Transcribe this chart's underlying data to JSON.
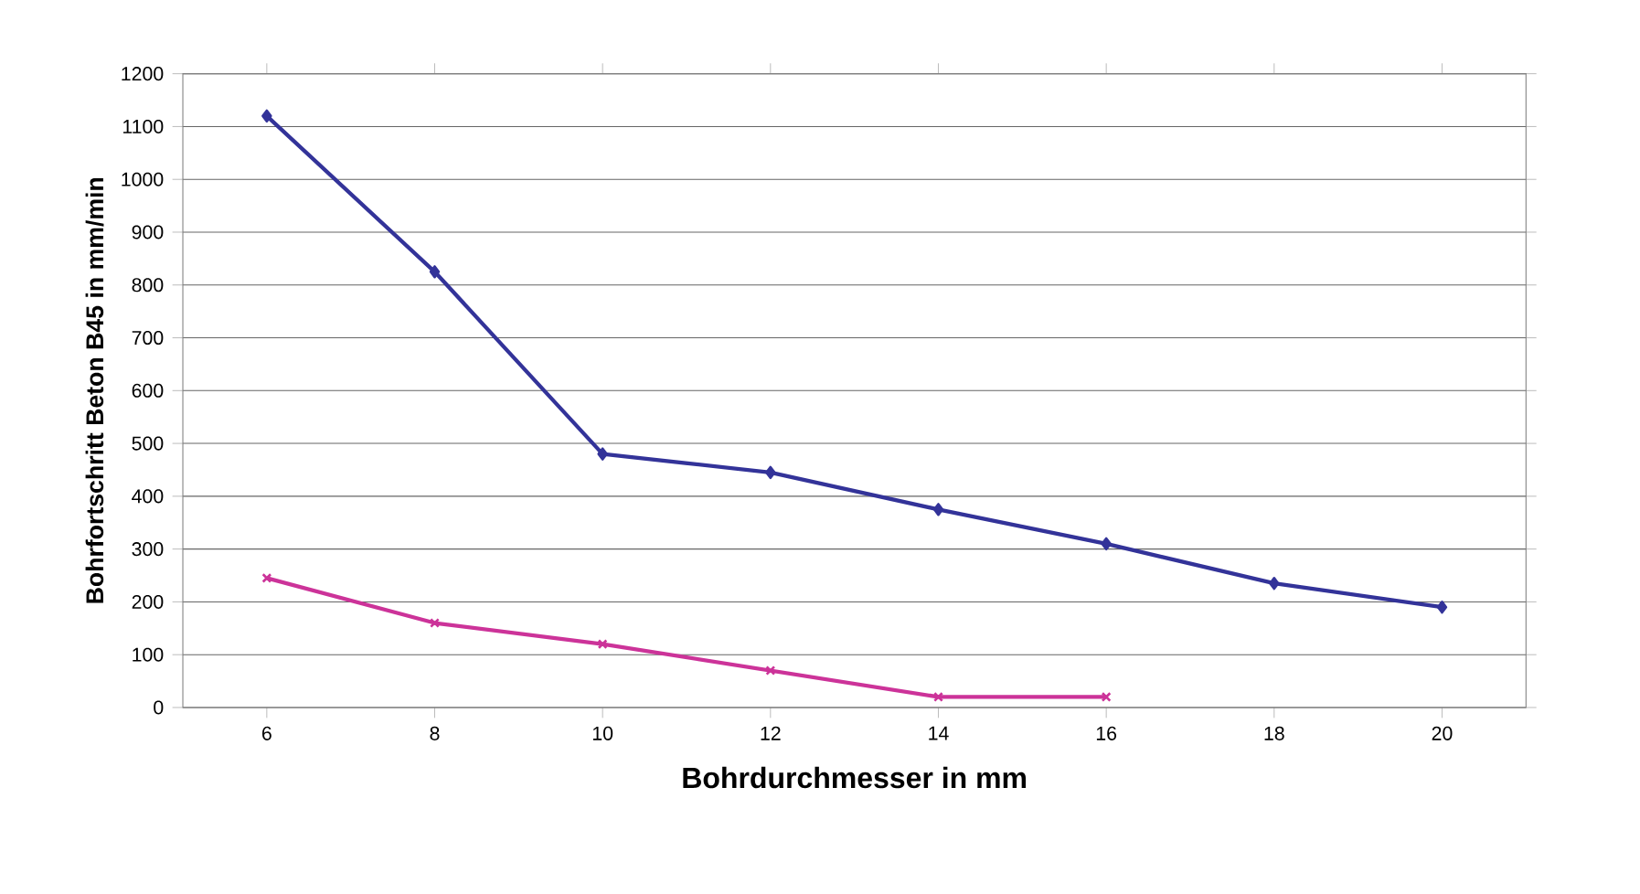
{
  "chart_data": {
    "type": "line",
    "xlabel": "Bohrdurchmesser in mm",
    "ylabel": "Bohrfortschritt Beton B45 in mm/min",
    "categories": [
      "6",
      "8",
      "10",
      "12",
      "14",
      "16",
      "18",
      "20"
    ],
    "series": [
      {
        "color": "#333399",
        "marker": "diamond",
        "values": [
          1120,
          825,
          480,
          445,
          375,
          310,
          235,
          190
        ]
      },
      {
        "color": "#cc3399",
        "marker": "cross",
        "values": [
          245,
          160,
          120,
          70,
          20,
          20,
          null,
          null
        ]
      }
    ],
    "ylim": [
      0,
      1200
    ],
    "yticks": [
      0,
      100,
      200,
      300,
      400,
      500,
      600,
      700,
      800,
      900,
      1000,
      1100,
      1200
    ],
    "grid": "y",
    "line_style": "solid"
  }
}
